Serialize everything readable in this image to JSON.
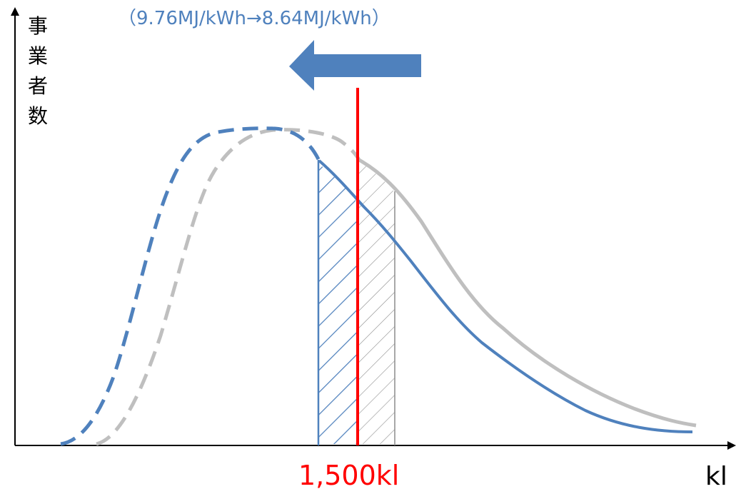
{
  "header": {
    "text": "（9.76MJ/kWh→8.64MJ/kWh）"
  },
  "axes": {
    "y_label": "事業者数",
    "x_label": "kl"
  },
  "threshold": {
    "label": "1,500kl"
  },
  "colors": {
    "blue": "#4f81bd",
    "gray": "#bfbfbf",
    "red": "#ff0000",
    "axis": "#000000",
    "hatch_blue": "#4f81bd",
    "hatch_gray": "#8c8c8c"
  },
  "icons": {
    "arrow": "left-arrow-icon"
  }
}
